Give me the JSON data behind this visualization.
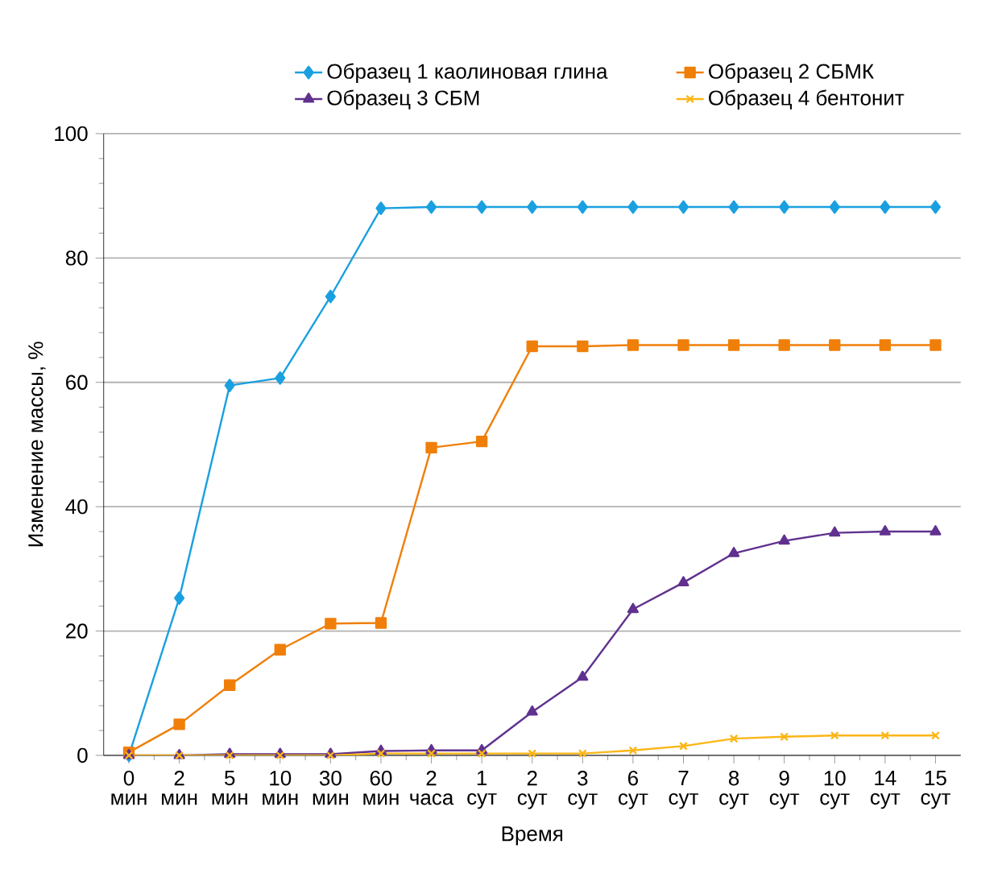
{
  "chart_data": {
    "type": "line",
    "xlabel": "Время",
    "ylabel": "Изменение массы, %",
    "categories": [
      "0 мин",
      "2 мин",
      "5 мин",
      "10 мин",
      "30 мин",
      "60 мин",
      "2 часа",
      "1 сут",
      "2 сут",
      "3 сут",
      "6 сут",
      "7 сут",
      "8 сут",
      "9 сут",
      "10 сут",
      "14 сут",
      "15 сут"
    ],
    "ylim": [
      0,
      100
    ],
    "yticks": [
      0,
      20,
      40,
      60,
      80,
      100
    ],
    "grid": "y",
    "legend": "top",
    "line_style": "solid",
    "series": [
      {
        "name": "Образец 1 каолиновая глина",
        "color": "#1aa0e0",
        "marker": "diamond",
        "values": [
          0,
          25.3,
          59.5,
          60.7,
          73.8,
          88,
          88.2,
          88.2,
          88.2,
          88.2,
          88.2,
          88.2,
          88.2,
          88.2,
          88.2,
          88.2,
          88.2
        ]
      },
      {
        "name": "Образец 2 СБМК",
        "color": "#f07f09",
        "marker": "square",
        "values": [
          0.5,
          5,
          11.3,
          17,
          21.2,
          21.3,
          49.5,
          50.5,
          65.8,
          65.8,
          66,
          66,
          66,
          66,
          66,
          66,
          66
        ]
      },
      {
        "name": "Образец 3 СБМ",
        "color": "#60318f",
        "marker": "triangle",
        "values": [
          0,
          0,
          0.2,
          0.2,
          0.2,
          0.7,
          0.8,
          0.8,
          7,
          12.6,
          23.5,
          27.8,
          32.5,
          34.5,
          35.8,
          36,
          36
        ]
      },
      {
        "name": "Образец 4 бентонит",
        "color": "#fbb616",
        "marker": "cross",
        "values": [
          0,
          0,
          0,
          0,
          0,
          0.3,
          0.3,
          0.3,
          0.3,
          0.3,
          0.8,
          1.5,
          2.7,
          3,
          3.2,
          3.2,
          3.2
        ]
      }
    ]
  }
}
